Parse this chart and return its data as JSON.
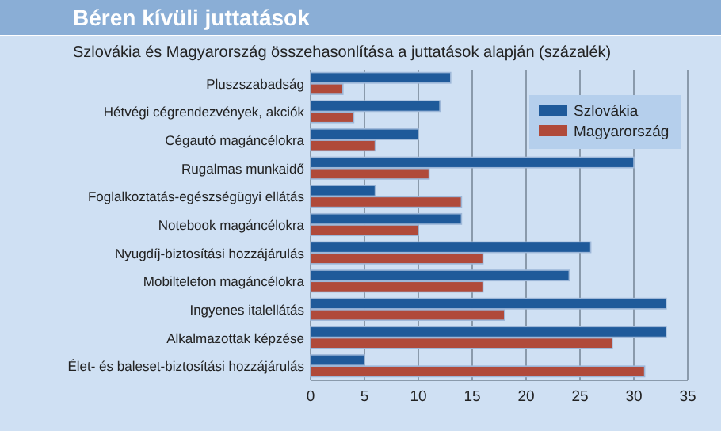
{
  "chart_data": {
    "type": "bar",
    "orientation": "horizontal",
    "title": "Béren kívüli juttatások",
    "subtitle": "Szlovákia és Magyarország összehasonlítása a juttatások alapján (százalék)",
    "categories": [
      "Pluszszabadság",
      "Hétvégi cégrendezvények, akciók",
      "Cégautó magáncélokra",
      "Rugalmas munkaidő",
      "Foglalkoztatás-egészségügyi ellátás",
      "Notebook magáncélokra",
      "Nyugdíj-biztosítási hozzájárulás",
      "Mobiltelefon magáncélokra",
      "Ingyenes italellátás",
      "Alkalmazottak képzése",
      "Élet- és baleset-biztosítási hozzájárulás"
    ],
    "series": [
      {
        "name": "Szlovákia",
        "color": "#1f5a9a",
        "values": [
          13,
          12,
          10,
          30,
          6,
          14,
          26,
          24,
          33,
          33,
          5
        ]
      },
      {
        "name": "Magyarország",
        "color": "#b04a3a",
        "values": [
          3,
          4,
          6,
          11,
          14,
          10,
          16,
          16,
          18,
          28,
          31
        ]
      }
    ],
    "xlim": [
      0,
      35
    ],
    "xticks": [
      0,
      5,
      10,
      15,
      20,
      25,
      30,
      35
    ],
    "grid": "x",
    "legend": "top right"
  }
}
